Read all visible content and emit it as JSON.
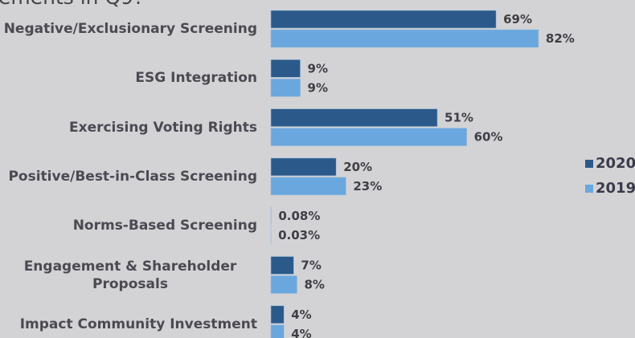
{
  "chart_data": {
    "type": "bar",
    "orientation": "horizontal",
    "title": "ements in Q9?",
    "categories": [
      "Negative/Exclusionary Screening",
      "ESG Integration",
      "Exercising Voting Rights",
      "Positive/Best-in-Class Screening",
      "Norms-Based Screening",
      "Engagement & Shareholder Proposals",
      "Impact Community Investment"
    ],
    "series": [
      {
        "name": "2020",
        "color": "#2b5a8a",
        "values": [
          69,
          9,
          51,
          20,
          0.08,
          7,
          4
        ],
        "value_labels": [
          "69%",
          "9%",
          "51%",
          "20%",
          "0.08%",
          "7%",
          "4%"
        ]
      },
      {
        "name": "2019",
        "color": "#6aa7de",
        "values": [
          82,
          9,
          60,
          23,
          0.03,
          8,
          4
        ],
        "value_labels": [
          "82%",
          "9%",
          "60%",
          "23%",
          "0.03%",
          "8%",
          "4%"
        ]
      }
    ],
    "legend": "right"
  }
}
